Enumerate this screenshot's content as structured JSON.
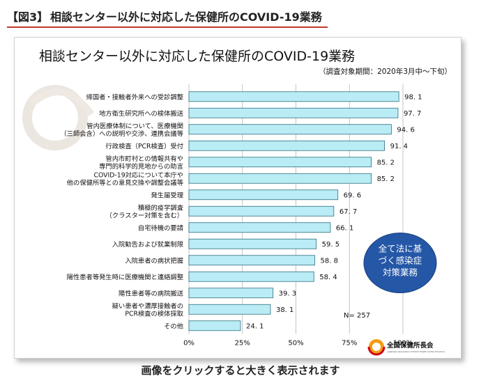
{
  "heading": {
    "tag": "【図3】",
    "title": "相談センター以外に対応した保健所のCOVID-19業務"
  },
  "caption": "画像をクリックすると大きく表示されます",
  "logo": {
    "icon": "jphca-logo-icon",
    "name": "全国保健所長会",
    "english": "Japanese Association of Public Health Center Directors"
  },
  "chart_data": {
    "type": "bar",
    "orientation": "horizontal",
    "title": "相談センター以外に対応した保健所のCOVID-19業務",
    "subtitle": "（調査対象期間：2020年3月中～下旬）",
    "categories": [
      [
        "帰国者・接触者外来への受診調整"
      ],
      [
        "地方衛生研究所への検体搬送"
      ],
      [
        "管内医療体制について、医療機関",
        "（三師会含）への説明や交渉、連携会議等"
      ],
      [
        "行政検査（PCR検査）受付"
      ],
      [
        "管内市町村との情報共有や",
        "専門的科学的見地からの助言"
      ],
      [
        "COVID-19対応について本庁や",
        "他の保健所等との意見交換や調整会議等"
      ],
      [
        "発生届受理"
      ],
      [
        "積極的疫学調査",
        "（クラスター対策を含む）"
      ],
      [
        "自宅待機の要請"
      ],
      [
        "入院勧告および就業制限"
      ],
      [
        "入院患者の病状把握"
      ],
      [
        "陽性患者等発生時に医療機関と連絡調整"
      ],
      [
        "陽性患者等の病院搬送"
      ],
      [
        "疑い患者や濃厚接触者の",
        "PCR検査の検体採取"
      ],
      [
        "その他"
      ]
    ],
    "values": [
      98.1,
      97.7,
      94.6,
      91.4,
      85.2,
      85.2,
      69.6,
      67.7,
      66.1,
      59.5,
      58.8,
      58.4,
      39.3,
      38.1,
      24.1
    ],
    "value_labels": [
      "98. 1",
      "97. 7",
      "94. 6",
      "91. 4",
      "85. 2",
      "85. 2",
      "69. 6",
      "67. 7",
      "66. 1",
      "59. 5",
      "58. 8",
      "58. 4",
      "39. 3",
      "38. 1",
      "24. 1"
    ],
    "xlim": [
      0,
      100
    ],
    "x_ticks": [
      "0%",
      "25%",
      "50%",
      "75%",
      "100%"
    ],
    "x_gridlines": true,
    "n_label": "N= 257",
    "callout": "全て法に基づく感染症対策業務",
    "callout_lines": [
      "全て法に基",
      "づく感染症",
      "対策業務"
    ],
    "callout_rows": [
      0,
      11
    ],
    "colors": {
      "bar_fill": "#b9ecf5",
      "bar_stroke": "#2c6f7e",
      "callout_fill": "#2557a7",
      "callout_text": "#ffffff",
      "gridline": "#b5b5b5",
      "heading_rule": "#c0392b",
      "watermark": "#ece6e0"
    }
  }
}
